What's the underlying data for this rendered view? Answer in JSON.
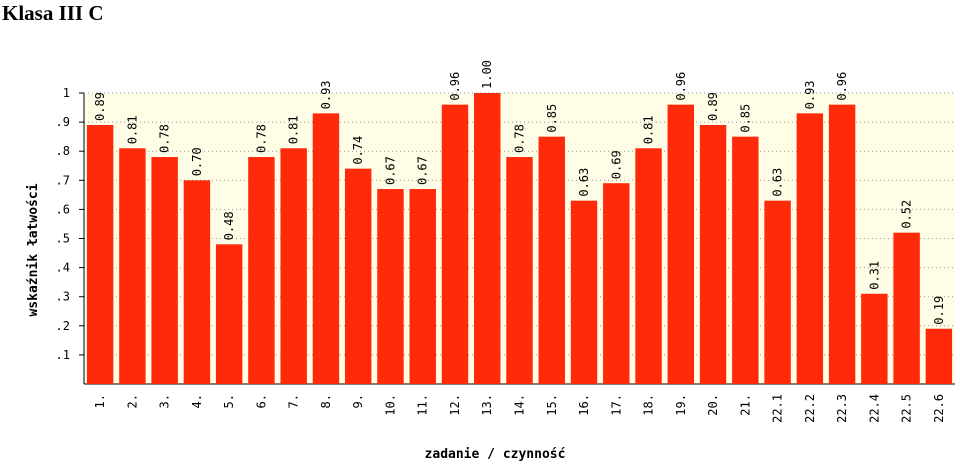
{
  "chart_data": {
    "type": "bar",
    "title": "Klasa III C",
    "x_label": "zadanie / czynność",
    "y_label": "wskaźnik łatwości",
    "categories": [
      "1.",
      "2.",
      "3.",
      "4.",
      "5.",
      "6.",
      "7.",
      "8.",
      "9.",
      "10.",
      "11.",
      "12.",
      "13.",
      "14.",
      "15.",
      "16.",
      "17.",
      "18.",
      "19.",
      "20.",
      "21.",
      "22.1",
      "22.2",
      "22.3",
      "22.4",
      "22.5",
      "22.6"
    ],
    "values": [
      0.89,
      0.81,
      0.78,
      0.7,
      0.48,
      0.78,
      0.81,
      0.93,
      0.74,
      0.67,
      0.67,
      0.96,
      1.0,
      0.78,
      0.85,
      0.63,
      0.69,
      0.81,
      0.96,
      0.89,
      0.85,
      0.63,
      0.93,
      0.96,
      0.31,
      0.52,
      0.19
    ],
    "value_labels": [
      "0.89",
      "0.81",
      "0.78",
      "0.70",
      "0.48",
      "0.78",
      "0.81",
      "0.93",
      "0.74",
      "0.67",
      "0.67",
      "0.96",
      "1.00",
      "0.78",
      "0.85",
      "0.63",
      "0.69",
      "0.81",
      "0.96",
      "0.89",
      "0.85",
      "0.63",
      "0.93",
      "0.96",
      "0.31",
      "0.52",
      "0.19"
    ],
    "color": "#ff2a0a",
    "ylim": [
      0,
      1
    ],
    "yticks": [
      {
        "value": 0.1,
        "label": ".1"
      },
      {
        "value": 0.2,
        "label": ".2"
      },
      {
        "value": 0.3,
        "label": ".3"
      },
      {
        "value": 0.4,
        "label": ".4"
      },
      {
        "value": 0.5,
        "label": ".5"
      },
      {
        "value": 0.6,
        "label": ".6"
      },
      {
        "value": 0.7,
        "label": ".7"
      },
      {
        "value": 0.8,
        "label": ".8"
      },
      {
        "value": 0.9,
        "label": ".9"
      },
      1
    ],
    "grid": true
  }
}
